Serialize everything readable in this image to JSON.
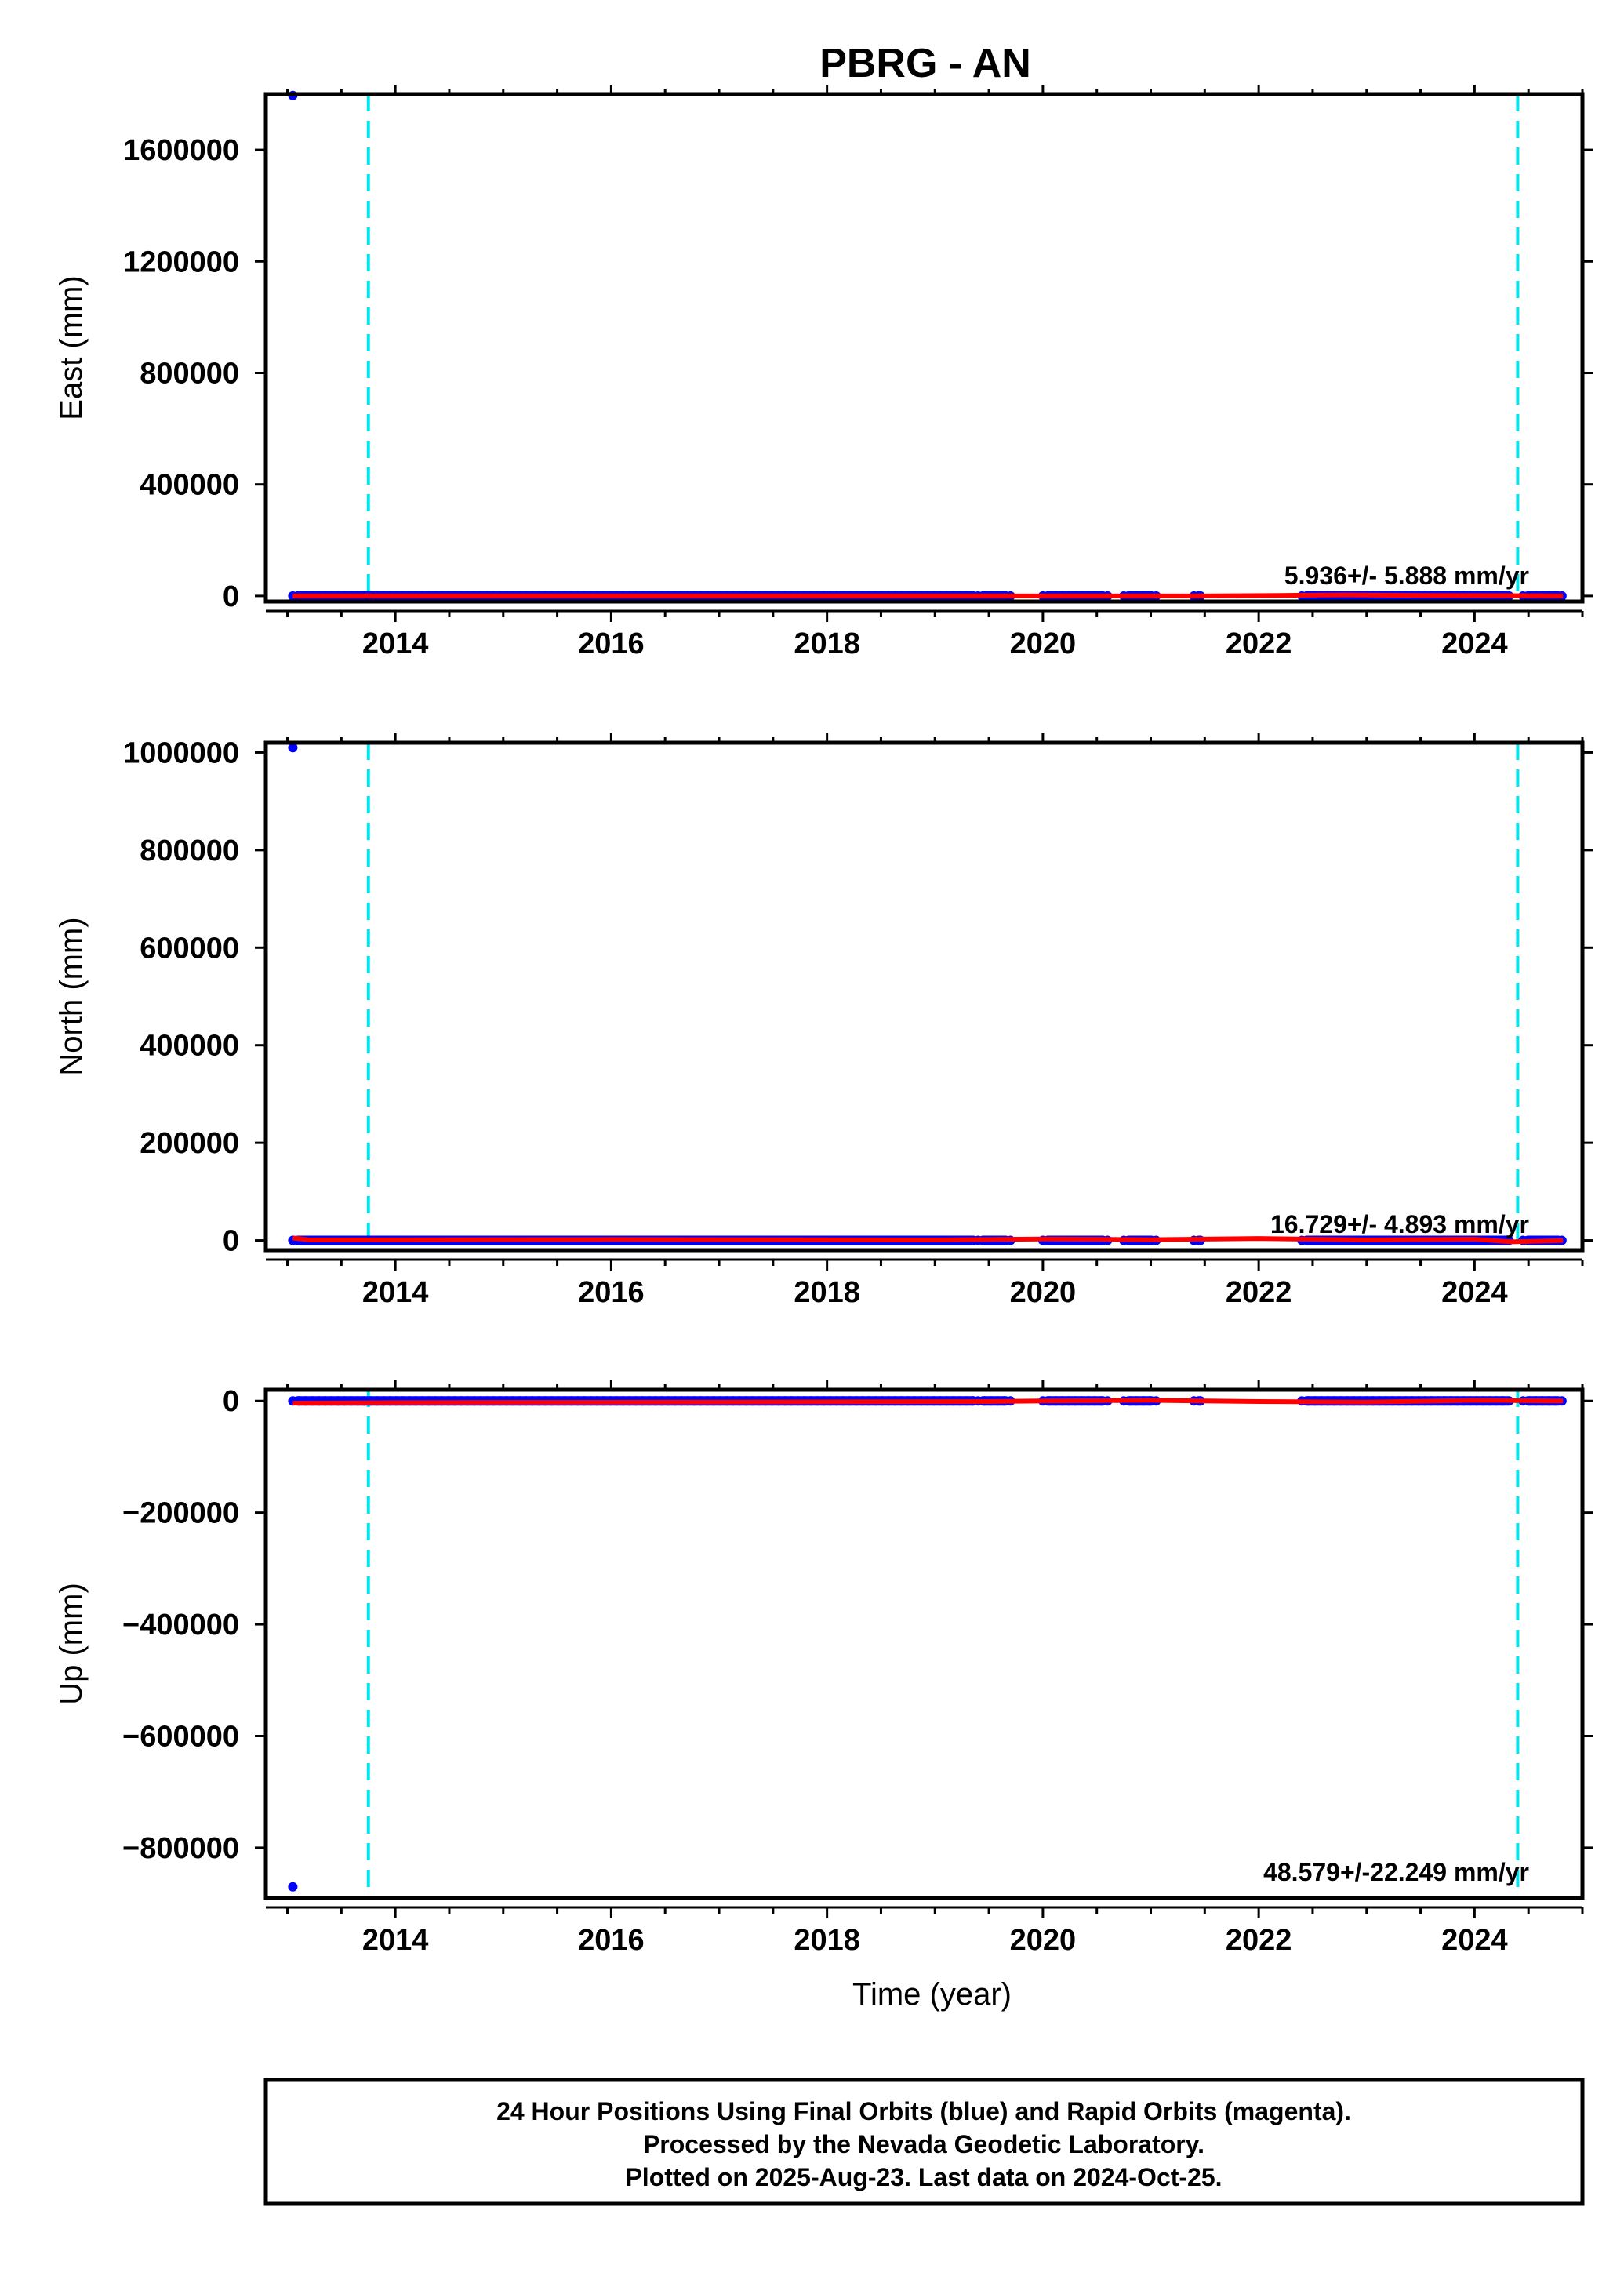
{
  "title": "PBRG - AN",
  "colors": {
    "final_orbits": "#0000ff",
    "rapid_orbits": "#ff00ff",
    "fit_line": "#ff0000",
    "event_line": "#00e5ee",
    "frame": "#000000"
  },
  "chart_data": [
    {
      "type": "scatter",
      "ylabel": "East (mm)",
      "xlim": [
        2012.8,
        2025.0
      ],
      "ylim": [
        -20000,
        1800000
      ],
      "x_ticks": [
        "2014",
        "2016",
        "2018",
        "2020",
        "2022",
        "2024"
      ],
      "y_ticks": [
        "0",
        "400000",
        "800000",
        "1200000",
        "1600000"
      ],
      "rate_label": "5.936+/- 5.888 mm/yr",
      "event_lines": [
        2013.75,
        2024.4
      ],
      "outliers": [
        {
          "x": 2013.05,
          "y": 1795000
        }
      ],
      "data_coverage": [
        [
          2013.05,
          2019.4
        ],
        [
          2019.4,
          2019.7
        ],
        [
          2020.0,
          2020.6
        ],
        [
          2020.75,
          2021.05
        ],
        [
          2021.4,
          2021.5
        ],
        [
          2022.4,
          2024.35
        ],
        [
          2024.45,
          2024.82
        ]
      ],
      "fit_line": {
        "x": [
          2013.05,
          2020.0,
          2021.5,
          2022.2,
          2022.8,
          2023.5,
          2024.3,
          2024.82
        ],
        "y": [
          0,
          0,
          0,
          2000,
          4000,
          2000,
          1000,
          0
        ]
      }
    },
    {
      "type": "scatter",
      "ylabel": "North (mm)",
      "xlim": [
        2012.8,
        2025.0
      ],
      "ylim": [
        -20000,
        1020000
      ],
      "x_ticks": [
        "2014",
        "2016",
        "2018",
        "2020",
        "2022",
        "2024"
      ],
      "y_ticks": [
        "0",
        "200000",
        "400000",
        "600000",
        "800000",
        "1000000"
      ],
      "rate_label": "16.729+/- 4.893 mm/yr",
      "event_lines": [
        2013.75,
        2024.4
      ],
      "outliers": [
        {
          "x": 2013.05,
          "y": 1010000
        }
      ],
      "data_coverage": [
        [
          2013.05,
          2019.4
        ],
        [
          2019.4,
          2019.7
        ],
        [
          2020.0,
          2020.6
        ],
        [
          2020.75,
          2021.05
        ],
        [
          2021.4,
          2021.5
        ],
        [
          2022.4,
          2024.35
        ],
        [
          2024.45,
          2024.82
        ]
      ],
      "fit_line": {
        "x": [
          2013.05,
          2013.2,
          2016.0,
          2019.0,
          2020.0,
          2021.0,
          2022.0,
          2023.0,
          2024.0,
          2024.35,
          2024.82
        ],
        "y": [
          5000,
          1000,
          2000,
          1000,
          3000,
          1500,
          4000,
          1000,
          2500,
          -3000,
          0
        ]
      }
    },
    {
      "type": "scatter",
      "ylabel": "Up (mm)",
      "xlabel": "Time (year)",
      "xlim": [
        2012.8,
        2025.0
      ],
      "ylim": [
        -890000,
        20000
      ],
      "x_ticks": [
        "2014",
        "2016",
        "2018",
        "2020",
        "2022",
        "2024"
      ],
      "y_ticks": [
        "0",
        "-200000",
        "-400000",
        "-600000",
        "-800000"
      ],
      "rate_label": "48.579+/-22.249 mm/yr",
      "event_lines": [
        2013.75,
        2024.4
      ],
      "outliers": [
        {
          "x": 2013.05,
          "y": -870000
        }
      ],
      "data_coverage": [
        [
          2013.05,
          2019.4
        ],
        [
          2019.4,
          2019.7
        ],
        [
          2020.0,
          2020.6
        ],
        [
          2020.75,
          2021.05
        ],
        [
          2021.4,
          2021.5
        ],
        [
          2022.4,
          2024.35
        ],
        [
          2024.45,
          2024.82
        ]
      ],
      "fit_line": {
        "x": [
          2013.05,
          2014.0,
          2017.0,
          2019.5,
          2020.0,
          2021.0,
          2022.0,
          2023.0,
          2024.0,
          2024.82
        ],
        "y": [
          -4000,
          -3000,
          -2000,
          -1000,
          0,
          1000,
          -1000,
          -2000,
          1000,
          0
        ]
      }
    }
  ],
  "caption": {
    "line1": "24 Hour Positions Using Final Orbits (blue) and Rapid Orbits (magenta).",
    "line2": "Processed by the Nevada Geodetic Laboratory.",
    "line3": "Plotted on 2025-Aug-23. Last data on 2024-Oct-25."
  }
}
